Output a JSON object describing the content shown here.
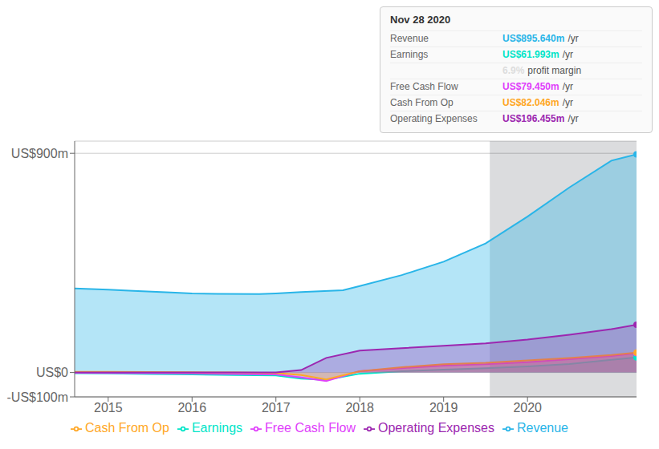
{
  "chart_data": {
    "type": "area",
    "xlim": [
      2014.6,
      2021.3
    ],
    "xticks": [
      2015,
      2016,
      2017,
      2018,
      2019,
      2020
    ],
    "ylim": [
      -100,
      950
    ],
    "yticks": [
      {
        "value": -100,
        "label": "-US$100m"
      },
      {
        "value": 0,
        "label": "US$0"
      },
      {
        "value": 900,
        "label": "US$900m"
      }
    ],
    "grid": "y",
    "legend": "bottom",
    "series": [
      {
        "name": "Revenue",
        "color": "#29b5e8",
        "x": [
          2014.6,
          2015.0,
          2015.3,
          2015.8,
          2016.0,
          2016.3,
          2016.8,
          2017.0,
          2017.3,
          2017.8,
          2018.0,
          2018.5,
          2019.0,
          2019.5,
          2020.0,
          2020.5,
          2021.0,
          2021.3
        ],
        "values": [
          345,
          340,
          335,
          328,
          325,
          323,
          322,
          325,
          330,
          338,
          355,
          400,
          455,
          530,
          640,
          760,
          870,
          896
        ]
      },
      {
        "name": "Earnings",
        "color": "#00e5c8",
        "x": [
          2014.6,
          2015.0,
          2015.5,
          2016.0,
          2016.5,
          2017.0,
          2017.3,
          2017.6,
          2018.0,
          2018.5,
          2019.0,
          2019.5,
          2020.0,
          2020.5,
          2021.0,
          2021.3
        ],
        "values": [
          -3,
          -4,
          -6,
          -8,
          -10,
          -12,
          -25,
          -30,
          -5,
          5,
          12,
          18,
          25,
          35,
          52,
          62
        ]
      },
      {
        "name": "Free Cash Flow",
        "color": "#e040fb",
        "x": [
          2014.6,
          2015.0,
          2015.5,
          2016.0,
          2016.5,
          2017.0,
          2017.3,
          2017.6,
          2018.0,
          2018.5,
          2019.0,
          2019.5,
          2020.0,
          2020.5,
          2021.0,
          2021.3
        ],
        "values": [
          -1,
          -2,
          -3,
          -4,
          -6,
          -8,
          -20,
          -35,
          5,
          18,
          28,
          34,
          42,
          55,
          68,
          79
        ]
      },
      {
        "name": "Cash From Op",
        "color": "#ffa726",
        "x": [
          2014.6,
          2015.0,
          2015.5,
          2016.0,
          2016.5,
          2017.0,
          2017.3,
          2017.6,
          2018.0,
          2018.5,
          2019.0,
          2019.5,
          2020.0,
          2020.5,
          2021.0,
          2021.3
        ],
        "values": [
          3,
          3,
          2,
          1,
          0,
          -2,
          -10,
          -28,
          5,
          22,
          34,
          40,
          50,
          60,
          72,
          82
        ]
      },
      {
        "name": "Operating Expenses",
        "color": "#9c27b0",
        "x": [
          2014.6,
          2015.0,
          2015.5,
          2016.0,
          2016.5,
          2017.0,
          2017.3,
          2017.6,
          2018.0,
          2018.5,
          2019.0,
          2019.5,
          2020.0,
          2020.5,
          2021.0,
          2021.3
        ],
        "values": [
          0,
          0,
          0,
          0,
          0,
          0,
          10,
          60,
          90,
          100,
          110,
          120,
          135,
          155,
          178,
          196
        ]
      }
    ],
    "shaded_region": {
      "x_start": 2019.55,
      "color": "#0c1520"
    },
    "info_box": {
      "title": "Nov 28 2020",
      "rows": [
        {
          "label": "Revenue",
          "value": "US$895.640m",
          "color": "#29b5e8",
          "suffix": "/yr"
        },
        {
          "label": "Earnings",
          "value": "US$61.993m",
          "color": "#00e5c8",
          "suffix": "/yr"
        },
        {
          "value": "6.9%",
          "color": "#dddddd",
          "suffix": "profit margin"
        },
        {
          "label": "Free Cash Flow",
          "value": "US$79.450m",
          "color": "#e040fb",
          "suffix": "/yr"
        },
        {
          "label": "Cash From Op",
          "value": "US$82.046m",
          "color": "#ffa726",
          "suffix": "/yr"
        },
        {
          "label": "Operating Expenses",
          "value": "US$196.455m",
          "color": "#9c27b0",
          "suffix": "/yr"
        }
      ]
    }
  }
}
